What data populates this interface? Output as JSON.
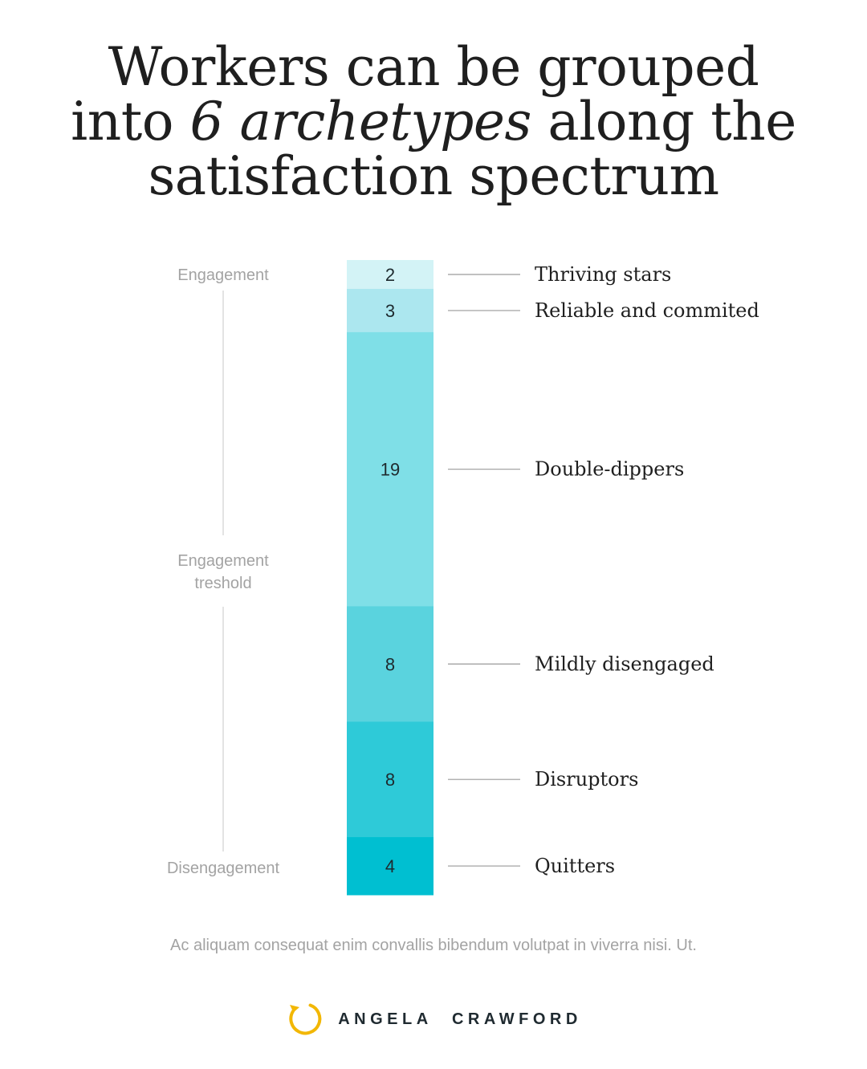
{
  "title": {
    "line1": "Workers can be grouped",
    "line2_pre": "into ",
    "line2_italic_num": "6",
    "line2_italic_word": " archetypes",
    "line2_post": " along the",
    "line3": "satisfaction spectrum"
  },
  "chart_data": {
    "type": "bar",
    "orientation": "stacked-vertical",
    "title": "Workers can be grouped into 6 archetypes along the satisfaction spectrum",
    "axis_labels": {
      "top": "Engagement",
      "middle_line1": "Engagement",
      "middle_line2": "treshold",
      "bottom": "Disengagement"
    },
    "categories": [
      "Thriving stars",
      "Reliable and commited",
      "Double-dippers",
      "Mildly disengaged",
      "Disruptors",
      "Quitters"
    ],
    "values": [
      2,
      3,
      19,
      8,
      8,
      4
    ],
    "value_labels": [
      "2",
      "3",
      "19",
      "8",
      "8",
      "4"
    ],
    "colors": [
      "#d3f3f6",
      "#ace7ef",
      "#7fdfe7",
      "#5ad3de",
      "#2ecad8",
      "#00bfd1"
    ],
    "legend": "none"
  },
  "footnote": "Ac aliquam consequat enim convallis bibendum volutpat in viverra nisi. Ut.",
  "brand": {
    "icon": "circular-arrow-icon",
    "name": "ANGELA CRAWFORD",
    "accent": "#f2b705"
  }
}
